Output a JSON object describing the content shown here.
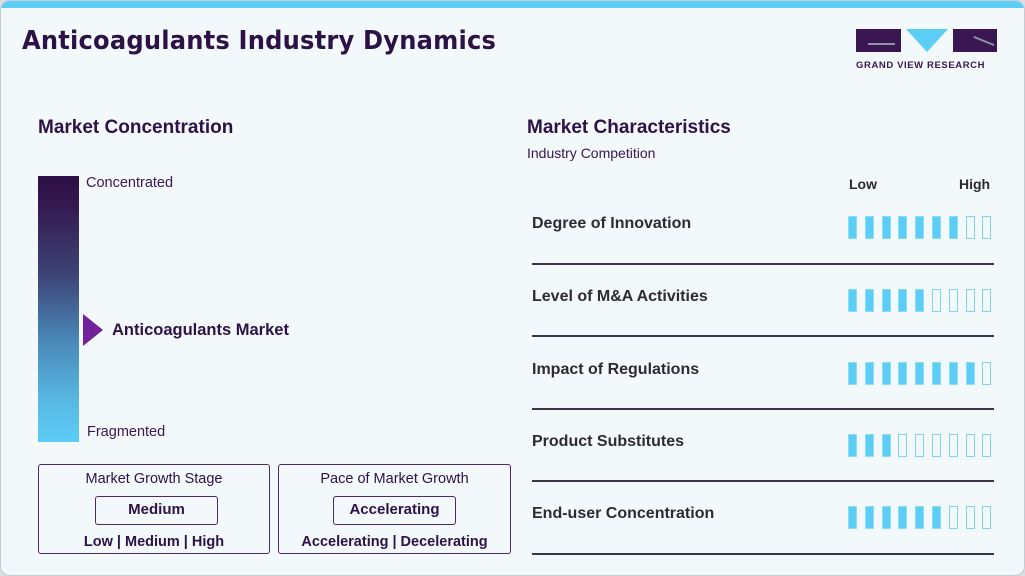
{
  "header": {
    "title": "Anticoagulants Industry Dynamics",
    "logo_text": "GRAND VIEW RESEARCH"
  },
  "colors": {
    "accent_blue": "#5ccdf5",
    "brand_purple": "#2c1247",
    "marker_purple": "#6f229a",
    "background": "#f3f8fb"
  },
  "market_concentration": {
    "title": "Market Concentration",
    "top_label": "Concentrated",
    "bottom_label": "Fragmented",
    "market_label": "Anticoagulants Market",
    "marker_icon": "triangle-right-icon"
  },
  "growth_stage": {
    "title": "Market Growth Stage",
    "value": "Medium",
    "options": "Low | Medium | High"
  },
  "pace_of_growth": {
    "title": "Pace of Market Growth",
    "value": "Accelerating",
    "options": "Accelerating | Decelerating"
  },
  "market_characteristics": {
    "title": "Market Characteristics",
    "subtitle": "Industry Competition",
    "scale_low": "Low",
    "scale_high": "High",
    "max_segments": 9,
    "rows": [
      {
        "label": "Degree of Innovation",
        "filled": 7
      },
      {
        "label": "Level of M&A Activities",
        "filled": 5
      },
      {
        "label": "Impact of Regulations",
        "filled": 8
      },
      {
        "label": "Product Substitutes",
        "filled": 3
      },
      {
        "label": "End-user Concentration",
        "filled": 6
      }
    ]
  }
}
